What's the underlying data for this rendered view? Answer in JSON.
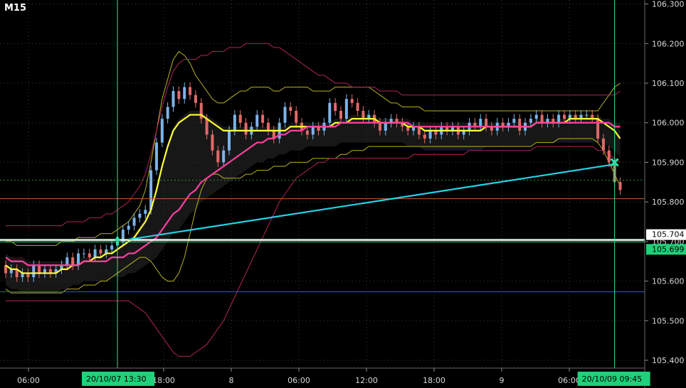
{
  "timeframe": "M15",
  "chart_data": {
    "type": "line",
    "title": "",
    "xlabel": "",
    "ylabel": "",
    "ylim": [
      105.33,
      106.31
    ],
    "x_tick_labels": [
      "06:00",
      "18:00",
      "8",
      "06:00",
      "12:00",
      "18:00",
      "9",
      "06:00"
    ],
    "y_tick_labels": [
      "106.300",
      "106.200",
      "106.100",
      "106.000",
      "105.900",
      "105.800",
      "105.700",
      "105.600",
      "105.500",
      "105.400"
    ],
    "y_ticks": [
      106.3,
      106.2,
      106.1,
      106.0,
      105.9,
      105.8,
      105.7,
      105.6,
      105.5,
      105.4
    ],
    "price_badges": [
      {
        "label": "105.704",
        "value": 105.704,
        "style": "white"
      },
      {
        "label": "105.699",
        "value": 105.699,
        "style": "green"
      }
    ],
    "time_badges": [
      {
        "label": "20/10/07   13:30"
      },
      {
        "label": "20/10/09   09:45"
      }
    ],
    "horizontal_lines": [
      {
        "value": 105.704,
        "color": "#e8fff4"
      },
      {
        "value": 105.699,
        "color": "#3ee08a"
      },
      {
        "value": 105.855,
        "color": "#2e8b2e",
        "style": "dotted"
      },
      {
        "value": 105.808,
        "color": "#c8602a"
      },
      {
        "value": 105.573,
        "color": "#2d5fd0"
      }
    ],
    "trend_line": {
      "color": "#22d3e6",
      "from": {
        "bar": 22,
        "value": 105.705
      },
      "to": {
        "bar": 109,
        "value": 105.895
      }
    },
    "entry_marker": {
      "type": "up-arrow",
      "bar": 20,
      "value": 105.69,
      "color": "#22e6a8"
    },
    "exit_marker": {
      "type": "cross",
      "bar": 109,
      "value": 105.9,
      "color": "#22e6a8"
    },
    "colors": {
      "up": "#7ab4e8",
      "down": "#e06a6a",
      "ma_fast": "#ffff33",
      "ma_slow": "#ff3fa0",
      "bb_inner": "#b7b320",
      "bb_outer": "#b0245c",
      "cloud": "#2a2a2a"
    },
    "series": [
      {
        "kind": "candles",
        "open": [
          105.64,
          105.62,
          105.63,
          105.61,
          105.62,
          105.61,
          105.64,
          105.62,
          105.63,
          105.62,
          105.63,
          105.64,
          105.66,
          105.64,
          105.67,
          105.67,
          105.66,
          105.68,
          105.67,
          105.68,
          105.69,
          105.7,
          105.73,
          105.74,
          105.76,
          105.77,
          105.78,
          105.88,
          105.95,
          106.01,
          106.04,
          106.08,
          106.06,
          106.09,
          106.07,
          106.05,
          106.01,
          105.97,
          105.93,
          105.9,
          105.93,
          105.98,
          106.02,
          106.0,
          105.97,
          105.99,
          106.02,
          106.0,
          105.98,
          105.96,
          106.0,
          106.04,
          106.03,
          106.0,
          105.98,
          105.97,
          105.99,
          105.98,
          106.0,
          106.05,
          106.03,
          106.01,
          106.06,
          106.05,
          106.03,
          106.01,
          106.02,
          106.0,
          105.98,
          106.0,
          106.01,
          106.0,
          105.99,
          105.98,
          105.99,
          105.97,
          105.96,
          105.98,
          105.97,
          105.99,
          105.98,
          105.99,
          105.97,
          105.98,
          106.0,
          105.99,
          106.01,
          105.99,
          105.98,
          106.0,
          105.99,
          106.0,
          106.01,
          105.98,
          106.0,
          106.01,
          106.02,
          106.0,
          106.01,
          106.0,
          106.02,
          106.01,
          106.02,
          106.01,
          106.02,
          106.02,
          106.01,
          105.96,
          105.93,
          105.9,
          105.85
        ],
        "close": [
          105.62,
          105.63,
          105.61,
          105.62,
          105.61,
          105.64,
          105.62,
          105.63,
          105.62,
          105.63,
          105.64,
          105.66,
          105.64,
          105.67,
          105.67,
          105.66,
          105.68,
          105.67,
          105.68,
          105.69,
          105.7,
          105.73,
          105.74,
          105.76,
          105.77,
          105.78,
          105.88,
          105.95,
          106.01,
          106.04,
          106.08,
          106.06,
          106.09,
          106.07,
          106.05,
          106.01,
          105.97,
          105.93,
          105.9,
          105.93,
          105.98,
          106.02,
          106.0,
          105.97,
          105.99,
          106.02,
          106.0,
          105.98,
          105.96,
          106.0,
          106.04,
          106.03,
          106.0,
          105.98,
          105.97,
          105.99,
          105.98,
          106.0,
          106.05,
          106.03,
          106.01,
          106.06,
          106.05,
          106.03,
          106.01,
          106.02,
          106.0,
          105.98,
          106.0,
          106.01,
          106.0,
          105.99,
          105.98,
          105.99,
          105.97,
          105.96,
          105.98,
          105.97,
          105.99,
          105.98,
          105.99,
          105.97,
          105.98,
          106.0,
          105.99,
          106.01,
          105.99,
          105.98,
          106.0,
          105.99,
          106.0,
          106.01,
          105.98,
          106.0,
          106.01,
          106.02,
          106.0,
          106.01,
          106.0,
          106.02,
          106.01,
          106.02,
          106.01,
          106.02,
          106.02,
          106.01,
          105.96,
          105.93,
          105.9,
          105.85,
          105.83
        ]
      },
      {
        "kind": "ma_fast",
        "values": [
          105.64,
          105.63,
          105.63,
          105.62,
          105.62,
          105.62,
          105.62,
          105.62,
          105.62,
          105.62,
          105.63,
          105.63,
          105.64,
          105.64,
          105.65,
          105.65,
          105.66,
          105.66,
          105.67,
          105.67,
          105.68,
          105.69,
          105.7,
          105.71,
          105.73,
          105.75,
          105.78,
          105.83,
          105.89,
          105.94,
          105.98,
          106.0,
          106.01,
          106.02,
          106.02,
          106.02,
          106.01,
          106.0,
          105.99,
          105.98,
          105.98,
          105.98,
          105.98,
          105.98,
          105.98,
          105.98,
          105.98,
          105.98,
          105.98,
          105.98,
          105.98,
          105.99,
          105.99,
          105.99,
          105.99,
          105.99,
          105.99,
          105.99,
          105.99,
          106.0,
          106.0,
          106.0,
          106.01,
          106.01,
          106.01,
          106.01,
          106.01,
          106.0,
          106.0,
          106.0,
          106.0,
          106.0,
          105.99,
          105.99,
          105.99,
          105.98,
          105.98,
          105.98,
          105.98,
          105.98,
          105.98,
          105.98,
          105.98,
          105.98,
          105.98,
          105.98,
          105.99,
          105.99,
          105.99,
          105.99,
          105.99,
          105.99,
          105.99,
          105.99,
          105.99,
          106.0,
          106.0,
          106.0,
          106.0,
          106.0,
          106.0,
          106.01,
          106.01,
          106.01,
          106.01,
          106.01,
          106.01,
          106.0,
          105.99,
          105.98,
          105.96
        ]
      },
      {
        "kind": "ma_slow",
        "values": [
          105.66,
          105.65,
          105.65,
          105.65,
          105.64,
          105.64,
          105.64,
          105.64,
          105.64,
          105.64,
          105.64,
          105.64,
          105.64,
          105.64,
          105.65,
          105.65,
          105.65,
          105.65,
          105.65,
          105.66,
          105.66,
          105.66,
          105.67,
          105.67,
          105.68,
          105.69,
          105.7,
          105.71,
          105.73,
          105.75,
          105.77,
          105.78,
          105.8,
          105.82,
          105.83,
          105.85,
          105.86,
          105.87,
          105.88,
          105.89,
          105.9,
          105.91,
          105.92,
          105.93,
          105.94,
          105.95,
          105.95,
          105.96,
          105.96,
          105.97,
          105.97,
          105.98,
          105.98,
          105.98,
          105.99,
          105.99,
          105.99,
          105.99,
          105.99,
          105.99,
          106.0,
          106.0,
          106.0,
          106.0,
          106.0,
          106.0,
          106.0,
          106.0,
          106.0,
          106.0,
          106.0,
          106.0,
          106.0,
          105.99,
          105.99,
          105.99,
          105.99,
          105.99,
          105.99,
          105.99,
          105.99,
          105.99,
          105.99,
          105.99,
          105.99,
          105.99,
          105.99,
          105.99,
          105.99,
          105.99,
          105.99,
          105.99,
          105.99,
          105.99,
          105.99,
          106.0,
          106.0,
          106.0,
          106.0,
          106.0,
          106.0,
          106.0,
          106.0,
          106.0,
          106.0,
          106.0,
          106.0,
          106.0,
          106.0,
          105.99,
          105.99
        ]
      },
      {
        "kind": "bb_inner_upper",
        "values": [
          105.7,
          105.7,
          105.69,
          105.69,
          105.69,
          105.69,
          105.69,
          105.69,
          105.69,
          105.69,
          105.7,
          105.7,
          105.7,
          105.71,
          105.71,
          105.71,
          105.71,
          105.72,
          105.72,
          105.72,
          105.73,
          105.74,
          105.75,
          105.77,
          105.79,
          105.83,
          105.9,
          105.98,
          106.06,
          106.11,
          106.16,
          106.18,
          106.17,
          106.15,
          106.12,
          106.1,
          106.08,
          106.06,
          106.05,
          106.05,
          106.06,
          106.07,
          106.08,
          106.08,
          106.09,
          106.09,
          106.09,
          106.09,
          106.08,
          106.08,
          106.09,
          106.09,
          106.09,
          106.09,
          106.09,
          106.08,
          106.08,
          106.08,
          106.08,
          106.09,
          106.09,
          106.09,
          106.09,
          106.09,
          106.09,
          106.09,
          106.08,
          106.07,
          106.06,
          106.05,
          106.05,
          106.04,
          106.04,
          106.04,
          106.04,
          106.03,
          106.03,
          106.03,
          106.03,
          106.03,
          106.03,
          106.03,
          106.03,
          106.03,
          106.03,
          106.03,
          106.03,
          106.03,
          106.03,
          106.03,
          106.03,
          106.03,
          106.03,
          106.03,
          106.03,
          106.03,
          106.03,
          106.03,
          106.03,
          106.03,
          106.03,
          106.03,
          106.03,
          106.03,
          106.03,
          106.03,
          106.03,
          106.05,
          106.07,
          106.09,
          106.1
        ]
      },
      {
        "kind": "bb_inner_lower",
        "values": [
          105.58,
          105.57,
          105.57,
          105.57,
          105.57,
          105.57,
          105.57,
          105.57,
          105.57,
          105.57,
          105.57,
          105.58,
          105.58,
          105.58,
          105.59,
          105.59,
          105.59,
          105.6,
          105.6,
          105.61,
          105.62,
          105.63,
          105.64,
          105.65,
          105.66,
          105.66,
          105.65,
          105.63,
          105.61,
          105.6,
          105.6,
          105.62,
          105.66,
          105.72,
          105.78,
          105.83,
          105.86,
          105.87,
          105.87,
          105.86,
          105.86,
          105.86,
          105.86,
          105.87,
          105.87,
          105.88,
          105.88,
          105.88,
          105.89,
          105.89,
          105.89,
          105.9,
          105.9,
          105.9,
          105.9,
          105.91,
          105.91,
          105.91,
          105.91,
          105.91,
          105.92,
          105.92,
          105.93,
          105.93,
          105.93,
          105.94,
          105.94,
          105.94,
          105.94,
          105.94,
          105.94,
          105.94,
          105.94,
          105.94,
          105.94,
          105.94,
          105.94,
          105.94,
          105.94,
          105.94,
          105.94,
          105.94,
          105.94,
          105.94,
          105.94,
          105.94,
          105.94,
          105.94,
          105.94,
          105.94,
          105.94,
          105.94,
          105.94,
          105.94,
          105.94,
          105.95,
          105.95,
          105.95,
          105.95,
          105.96,
          105.96,
          105.96,
          105.96,
          105.96,
          105.96,
          105.96,
          105.95,
          105.93,
          105.9,
          105.87,
          105.84
        ]
      },
      {
        "kind": "bb_outer_upper",
        "values": [
          105.74,
          105.74,
          105.74,
          105.74,
          105.74,
          105.74,
          105.74,
          105.74,
          105.74,
          105.74,
          105.74,
          105.75,
          105.75,
          105.75,
          105.75,
          105.76,
          105.76,
          105.76,
          105.77,
          105.77,
          105.78,
          105.79,
          105.8,
          105.82,
          105.84,
          105.87,
          105.92,
          105.98,
          106.04,
          106.09,
          106.13,
          106.15,
          106.16,
          106.16,
          106.16,
          106.17,
          106.17,
          106.18,
          106.18,
          106.18,
          106.19,
          106.19,
          106.19,
          106.2,
          106.2,
          106.2,
          106.2,
          106.2,
          106.19,
          106.19,
          106.18,
          106.17,
          106.16,
          106.15,
          106.14,
          106.13,
          106.12,
          106.12,
          106.11,
          106.1,
          106.1,
          106.1,
          106.09,
          106.09,
          106.09,
          106.09,
          106.09,
          106.08,
          106.08,
          106.08,
          106.08,
          106.07,
          106.07,
          106.07,
          106.07,
          106.07,
          106.07,
          106.07,
          106.07,
          106.07,
          106.07,
          106.07,
          106.07,
          106.07,
          106.07,
          106.07,
          106.07,
          106.07,
          106.07,
          106.07,
          106.07,
          106.07,
          106.07,
          106.07,
          106.07,
          106.07,
          106.07,
          106.07,
          106.07,
          106.07,
          106.07,
          106.07,
          106.07,
          106.07,
          106.07,
          106.07,
          106.07,
          106.07,
          106.07,
          106.07,
          106.08
        ]
      },
      {
        "kind": "bb_outer_lower",
        "values": [
          105.55,
          105.55,
          105.55,
          105.55,
          105.55,
          105.55,
          105.55,
          105.55,
          105.55,
          105.55,
          105.55,
          105.55,
          105.55,
          105.55,
          105.55,
          105.55,
          105.55,
          105.55,
          105.55,
          105.55,
          105.55,
          105.55,
          105.55,
          105.54,
          105.53,
          105.52,
          105.5,
          105.48,
          105.46,
          105.44,
          105.42,
          105.41,
          105.41,
          105.41,
          105.42,
          105.43,
          105.44,
          105.46,
          105.48,
          105.5,
          105.53,
          105.56,
          105.59,
          105.62,
          105.65,
          105.68,
          105.71,
          105.74,
          105.77,
          105.8,
          105.82,
          105.84,
          105.86,
          105.87,
          105.88,
          105.89,
          105.9,
          105.9,
          105.91,
          105.91,
          105.91,
          105.91,
          105.91,
          105.91,
          105.91,
          105.91,
          105.91,
          105.91,
          105.91,
          105.91,
          105.91,
          105.91,
          105.91,
          105.92,
          105.92,
          105.92,
          105.92,
          105.92,
          105.92,
          105.92,
          105.92,
          105.92,
          105.92,
          105.93,
          105.93,
          105.93,
          105.93,
          105.93,
          105.93,
          105.93,
          105.93,
          105.93,
          105.93,
          105.93,
          105.93,
          105.94,
          105.94,
          105.94,
          105.94,
          105.94,
          105.94,
          105.94,
          105.94,
          105.94,
          105.94,
          105.94,
          105.93,
          105.93,
          105.92,
          105.91,
          105.9
        ]
      }
    ]
  }
}
